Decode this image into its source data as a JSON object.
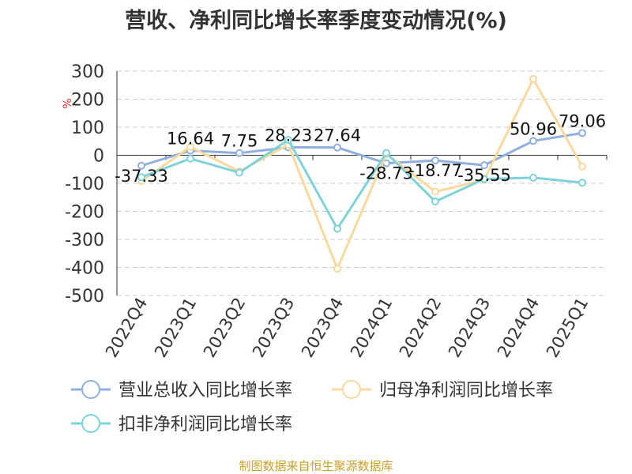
{
  "chart_data": {
    "type": "line",
    "title": "营收、净利同比增长率季度变动情况(%)",
    "ylabel": "%",
    "ylim": [
      -500,
      300
    ],
    "yticks": [
      300,
      200,
      100,
      0,
      -100,
      -200,
      -300,
      -400,
      -500
    ],
    "grid": true,
    "legend_position": "bottom",
    "categories": [
      "2022Q4",
      "2023Q1",
      "2023Q2",
      "2023Q3",
      "2023Q4",
      "2024Q1",
      "2024Q2",
      "2024Q3",
      "2024Q4",
      "2025Q1"
    ],
    "series": [
      {
        "name": "营业总收入同比增长率",
        "color": "#8fb0dd",
        "values": [
          -37.33,
          16.64,
          7.75,
          28.23,
          27.64,
          -28.73,
          -18.77,
          -35.55,
          50.96,
          79.06
        ],
        "data_labels": [
          "-37.33",
          "16.64",
          "7.75",
          "28.23",
          "27.64",
          "-28.73",
          "-18.77",
          "-35.55",
          "50.96",
          "79.06"
        ]
      },
      {
        "name": "归母净利润同比增长率",
        "color": "#f9d99e",
        "values": [
          -92,
          30,
          -58,
          38,
          -405,
          5,
          -130,
          -88,
          272,
          -40
        ]
      },
      {
        "name": "扣非净利润同比增长率",
        "color": "#7fd3d8",
        "values": [
          -78,
          -12,
          -62,
          55,
          -262,
          8,
          -165,
          -85,
          -80,
          -98
        ]
      }
    ]
  },
  "source_note": "制图数据来自恒生聚源数据库"
}
